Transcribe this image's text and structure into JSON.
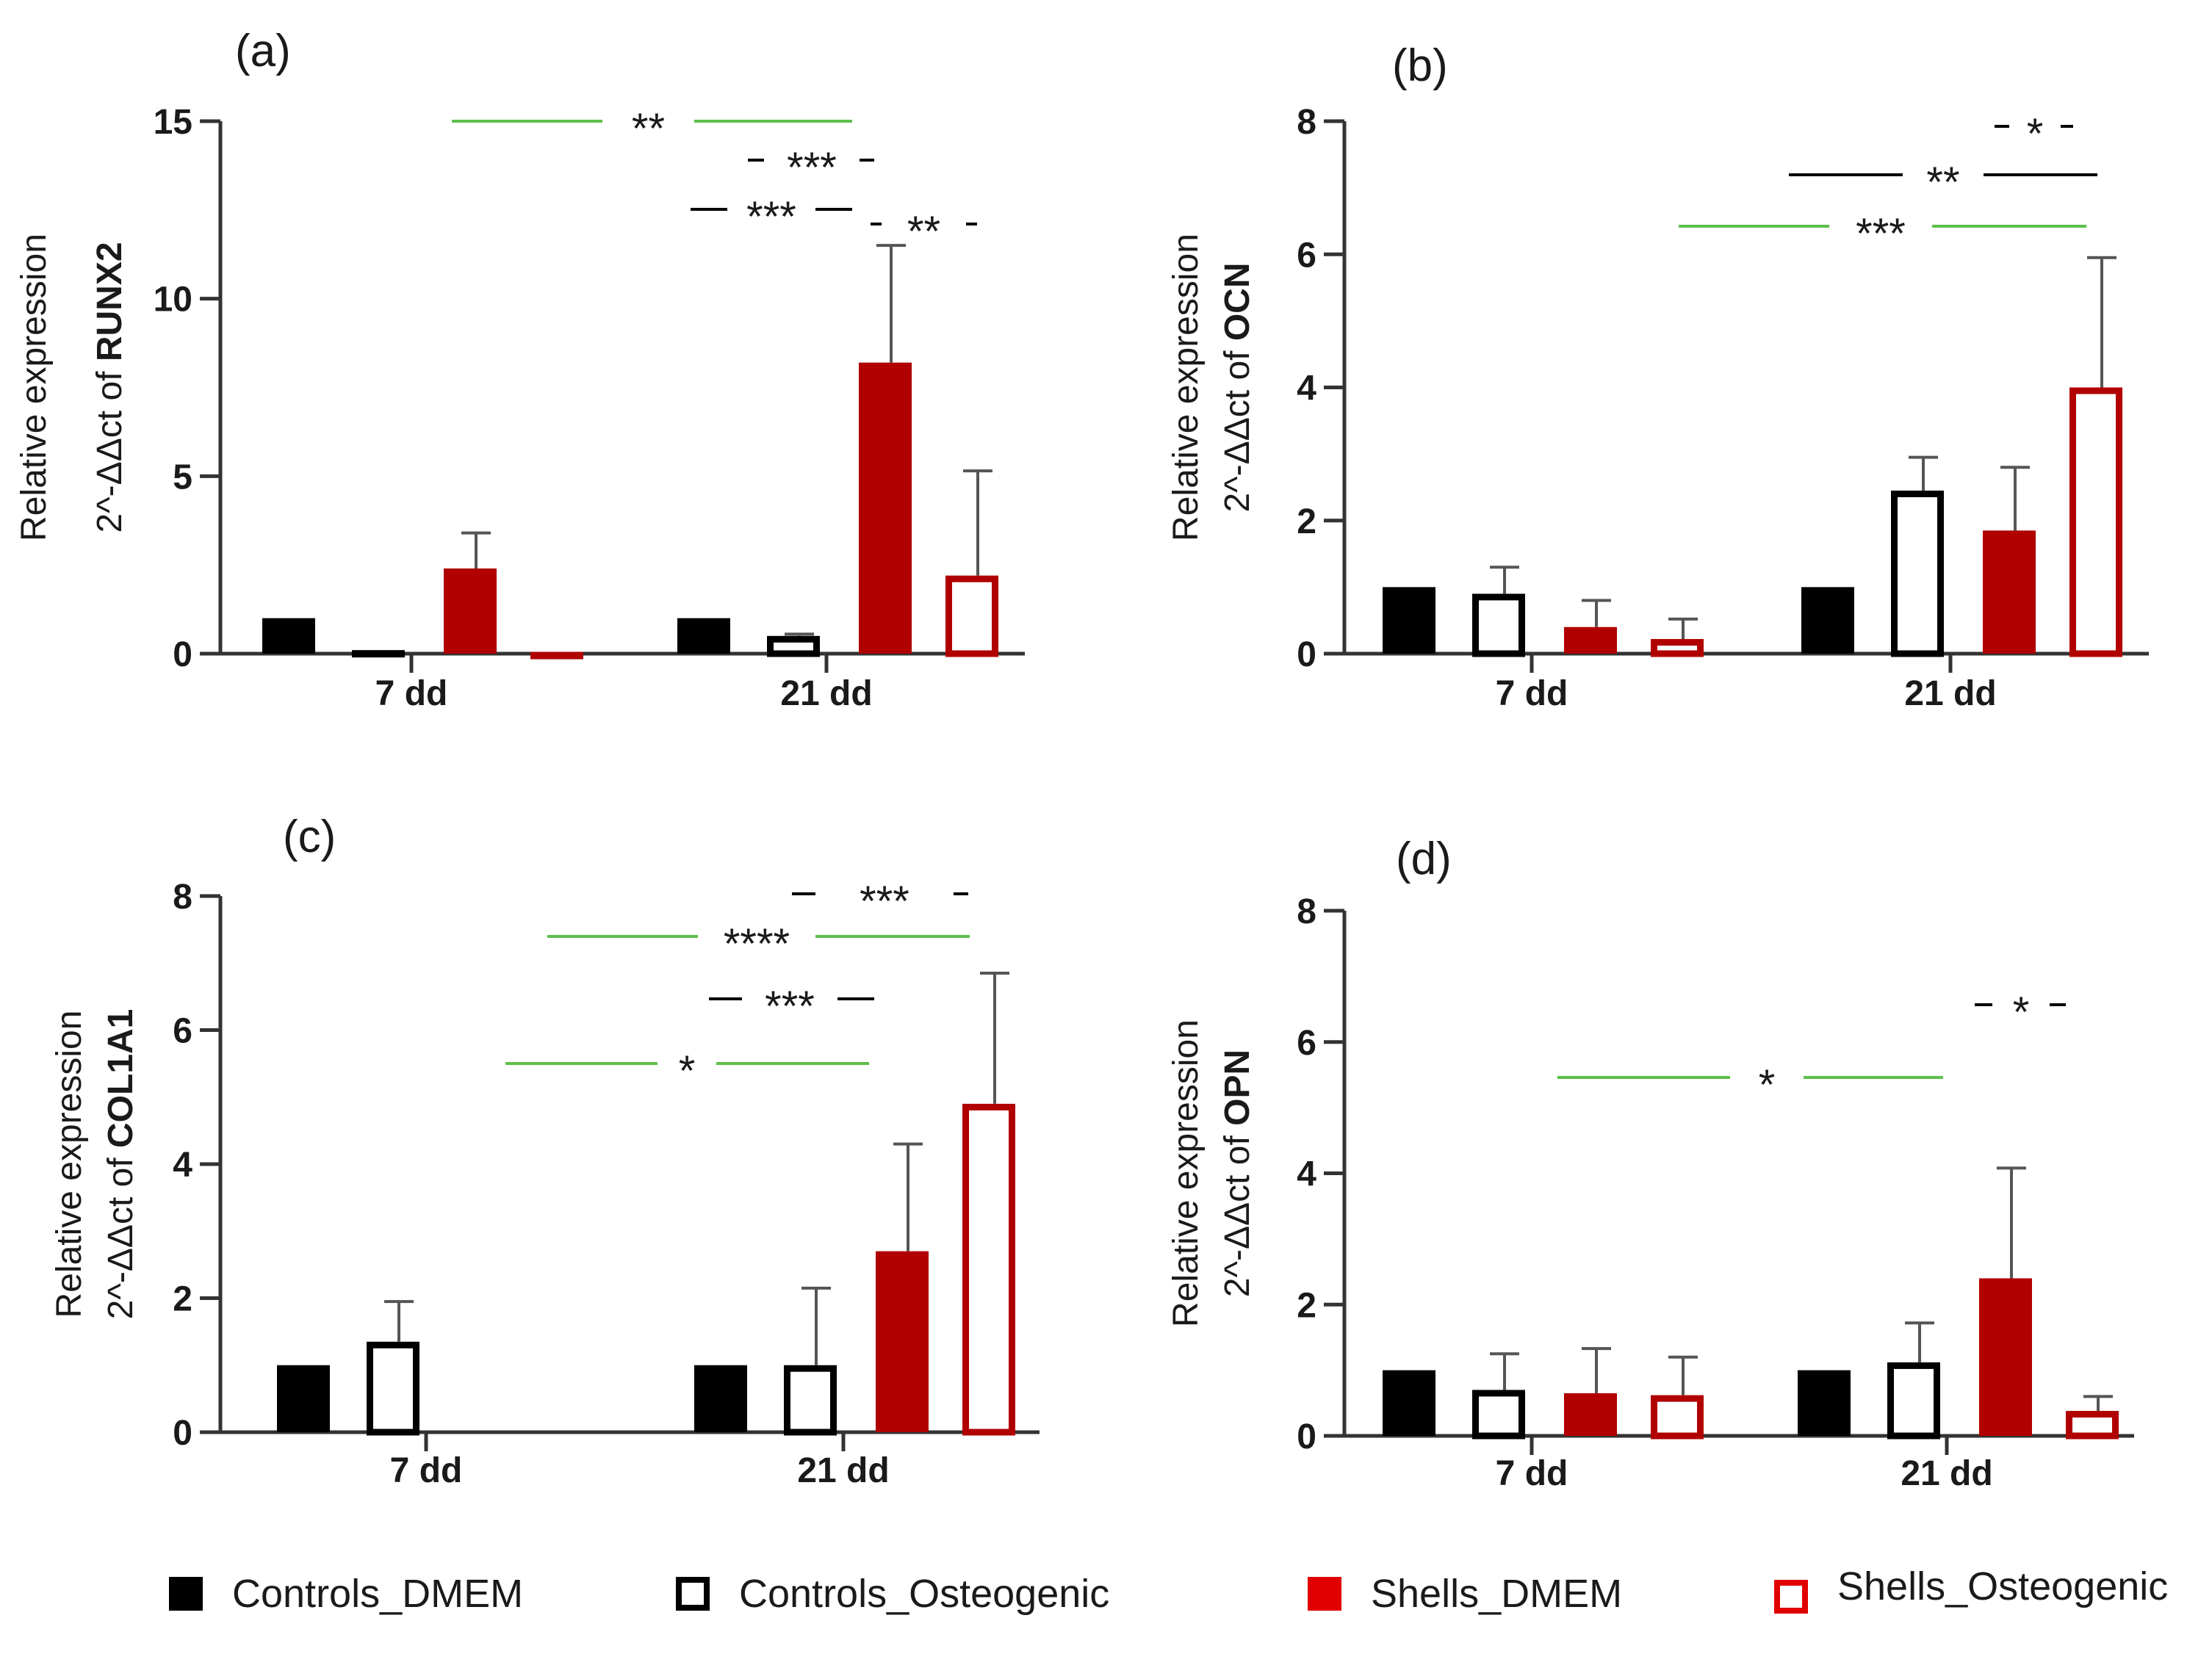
{
  "chart_data": [
    {
      "type": "bar",
      "panel_label": "(a)",
      "ylabel_line1": "Relative expression",
      "ylabel_prefix": "2^-ΔΔct of ",
      "ylabel_gene": "RUNX2",
      "ylim": [
        0,
        15
      ],
      "yticks": [
        0,
        5,
        10,
        15
      ],
      "categories": [
        "7 dd",
        "21 dd"
      ],
      "series": [
        {
          "name": "Controls_DMEM",
          "values": [
            1.0,
            1.0
          ],
          "errors": [
            0,
            0
          ]
        },
        {
          "name": "Controls_Osteogenic",
          "values": [
            0.1,
            0.5
          ],
          "errors": [
            0,
            0.05
          ]
        },
        {
          "name": "Shells_DMEM",
          "values": [
            2.4,
            8.2
          ],
          "errors": [
            1.0,
            3.3
          ]
        },
        {
          "name": "Shells_Osteogenic",
          "values": [
            0.05,
            2.2
          ],
          "errors": [
            0,
            2.95
          ]
        }
      ],
      "significance": [
        {
          "label": "**",
          "color": "green"
        },
        {
          "label": "***",
          "color": "black"
        },
        {
          "label": "***",
          "color": "black"
        },
        {
          "label": "**",
          "color": "black"
        }
      ]
    },
    {
      "type": "bar",
      "panel_label": "(b)",
      "ylabel_line1": "Relative expression",
      "ylabel_prefix": "2^-ΔΔct of ",
      "ylabel_gene": "OCN",
      "ylim": [
        0,
        8
      ],
      "yticks": [
        0,
        2,
        4,
        6,
        8
      ],
      "categories": [
        "7 dd",
        "21 dd"
      ],
      "series": [
        {
          "name": "Controls_DMEM",
          "values": [
            1.0,
            1.0
          ],
          "errors": [
            0,
            0
          ]
        },
        {
          "name": "Controls_Osteogenic",
          "values": [
            0.9,
            2.45
          ],
          "errors": [
            0.4,
            0.5
          ]
        },
        {
          "name": "Shells_DMEM",
          "values": [
            0.4,
            1.85
          ],
          "errors": [
            0.4,
            0.95
          ]
        },
        {
          "name": "Shells_Osteogenic",
          "values": [
            0.22,
            4.0
          ],
          "errors": [
            0.3,
            1.95
          ]
        }
      ],
      "significance": [
        {
          "label": "*",
          "color": "black"
        },
        {
          "label": "**",
          "color": "black"
        },
        {
          "label": "***",
          "color": "green"
        }
      ]
    },
    {
      "type": "bar",
      "panel_label": "(c)",
      "ylabel_line1": "Relative expression",
      "ylabel_prefix": "2^-ΔΔct of ",
      "ylabel_gene": "COL1A1",
      "ylim": [
        0,
        8
      ],
      "yticks": [
        0,
        2,
        4,
        6,
        8
      ],
      "categories": [
        "7 dd",
        "21 dd"
      ],
      "series": [
        {
          "name": "Controls_DMEM",
          "values": [
            1.0,
            1.0
          ],
          "errors": [
            0,
            0
          ]
        },
        {
          "name": "Controls_Osteogenic",
          "values": [
            1.35,
            1.0
          ],
          "errors": [
            0.6,
            1.15
          ]
        },
        {
          "name": "Shells_DMEM",
          "values": [
            null,
            2.7
          ],
          "errors": [
            0,
            1.6
          ]
        },
        {
          "name": "Shells_Osteogenic",
          "values": [
            null,
            4.9
          ],
          "errors": [
            0,
            1.95
          ]
        }
      ],
      "significance": [
        {
          "label": "***",
          "color": "black"
        },
        {
          "label": "****",
          "color": "green"
        },
        {
          "label": "***",
          "color": "black"
        },
        {
          "label": "*",
          "color": "green"
        }
      ]
    },
    {
      "type": "bar",
      "panel_label": "(d)",
      "ylabel_line1": "Relative expression",
      "ylabel_prefix": "2^-ΔΔct of ",
      "ylabel_gene": "OPN",
      "ylim": [
        0,
        8
      ],
      "yticks": [
        0,
        2,
        4,
        6,
        8
      ],
      "categories": [
        "7 dd",
        "21 dd"
      ],
      "series": [
        {
          "name": "Controls_DMEM",
          "values": [
            1.0,
            1.0
          ],
          "errors": [
            0,
            0
          ]
        },
        {
          "name": "Controls_Osteogenic",
          "values": [
            0.7,
            1.12
          ],
          "errors": [
            0.55,
            0.6
          ]
        },
        {
          "name": "Shells_DMEM",
          "values": [
            0.65,
            2.4
          ],
          "errors": [
            0.68,
            1.68
          ]
        },
        {
          "name": "Shells_Osteogenic",
          "values": [
            0.62,
            0.38
          ],
          "errors": [
            0.58,
            0.22
          ]
        }
      ],
      "significance": [
        {
          "label": "*",
          "color": "black"
        },
        {
          "label": "*",
          "color": "green"
        }
      ]
    }
  ],
  "legend": [
    {
      "name": "Controls_DMEM",
      "style": "filled-black"
    },
    {
      "name": "Controls_Osteogenic",
      "style": "outline-black"
    },
    {
      "name": "Shells_DMEM",
      "style": "filled-red"
    },
    {
      "name": "Shells_Osteogenic",
      "style": "outline-red"
    }
  ],
  "colors": {
    "black": "#000000",
    "red": "#b00000",
    "legend_red": "#e00000",
    "green_line": "#5cc04a",
    "axis": "#333333",
    "text": "#1a1a1a"
  }
}
